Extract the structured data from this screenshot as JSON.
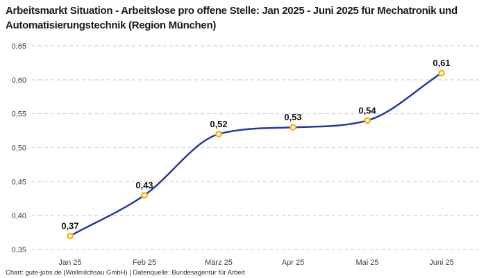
{
  "page": {
    "title": "Arbeitsmarkt Situation - Arbeitslose pro offene Stelle: Jan 2025 - Juni 2025 für Mechatronik und Automatisierungstechnik (Region München)",
    "footer": "Chart: gute-jobs.de (Wollmilchsau GmbH) | Datenquelle: Bundesagentur für Arbeit"
  },
  "colors": {
    "background": "#ffffff",
    "title_text": "#1a1a1a",
    "grid": "#c9c9c9",
    "line": "#2438a0",
    "marker_ring": "#f4b71d",
    "marker_fill": "#ffffff",
    "tick_text": "#3d3d3d",
    "point_label_text": "#111111"
  },
  "chart_data": {
    "type": "line",
    "title": "Arbeitsmarkt Situation - Arbeitslose pro offene Stelle: Jan 2025 - Juni 2025 für Mechatronik und Automatisierungstechnik (Region München)",
    "xlabel": "",
    "ylabel": "",
    "categories": [
      "Jan 25",
      "Feb 25",
      "März 25",
      "Apr 25",
      "Mai 25",
      "Juni 25"
    ],
    "series": [
      {
        "name": "Arbeitslose pro offene Stelle",
        "values": [
          0.37,
          0.43,
          0.52,
          0.53,
          0.54,
          0.61
        ]
      }
    ],
    "point_labels": [
      "0,37",
      "0,43",
      "0,52",
      "0,53",
      "0,54",
      "0,61"
    ],
    "ylim": [
      0.35,
      0.65
    ],
    "yticks": [
      0.35,
      0.4,
      0.45,
      0.5,
      0.55,
      0.6,
      0.65
    ],
    "ytick_labels": [
      "0,35",
      "0,40",
      "0,45",
      "0,50",
      "0,55",
      "0,60",
      "0,65"
    ],
    "grid": "dashed-horizontal",
    "legend": "none",
    "line_smooth": true
  }
}
